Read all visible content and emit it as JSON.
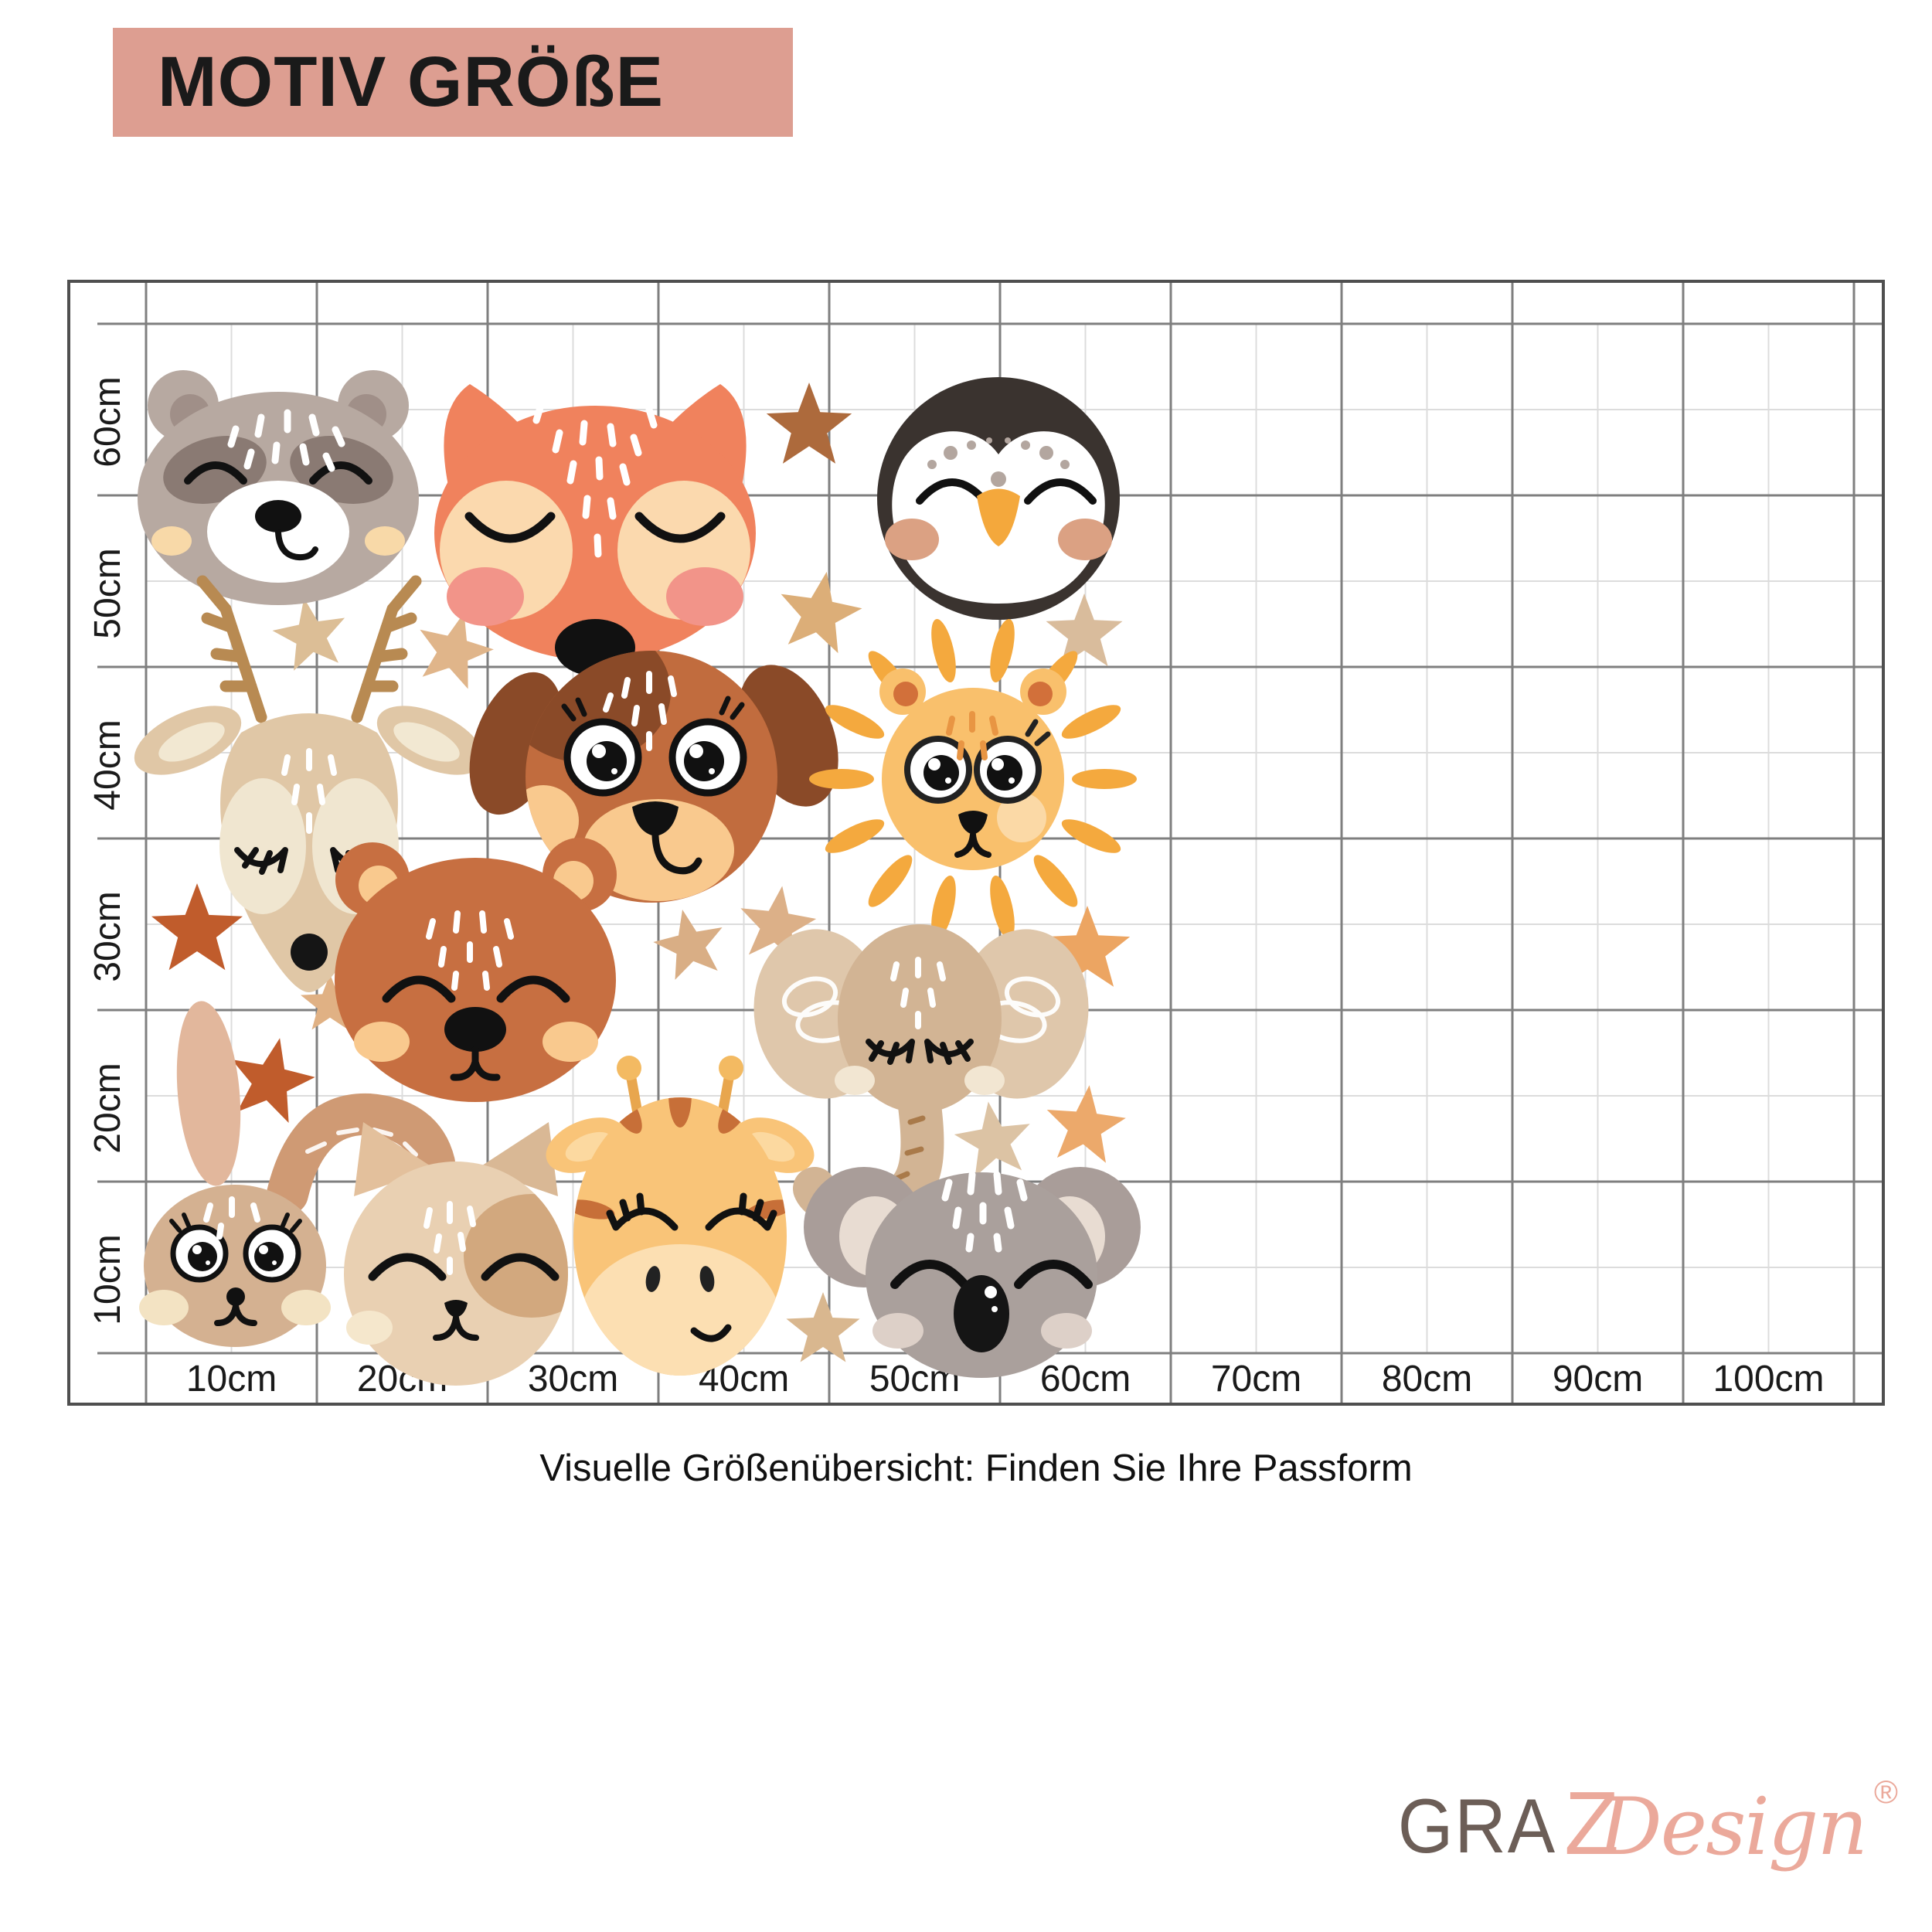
{
  "header": {
    "title": "MOTIV GRÖßE"
  },
  "size_grid": {
    "x_labels": [
      "10cm",
      "20cm",
      "30cm",
      "40cm",
      "50cm",
      "60cm",
      "70cm",
      "80cm",
      "90cm",
      "100cm"
    ],
    "y_labels": [
      "60cm",
      "50cm",
      "40cm",
      "30cm",
      "20cm",
      "10cm"
    ],
    "caption": "Visuelle Größenübersicht: Finden Sie Ihre Passform"
  },
  "illustration": {
    "animals": [
      "raccoon",
      "fox",
      "penguin",
      "deer",
      "dog",
      "lion",
      "bear",
      "elephant",
      "bunny",
      "cat",
      "giraffe",
      "koala"
    ],
    "decoration": "stars"
  },
  "logo": {
    "part1": "GRA",
    "part2": "Z",
    "part3": "Design",
    "registered": "®"
  },
  "colors": {
    "banner_bg": "#dd9e91",
    "banner_text": "#1a1a1a",
    "logo_gray": "#6c5e57",
    "logo_pink": "#eba99b",
    "grid_border": "#4f4f4f",
    "grid_major": "#7f7f7f",
    "grid_minor": "#dcdcdc",
    "axis_text": "#1a1a1a"
  }
}
